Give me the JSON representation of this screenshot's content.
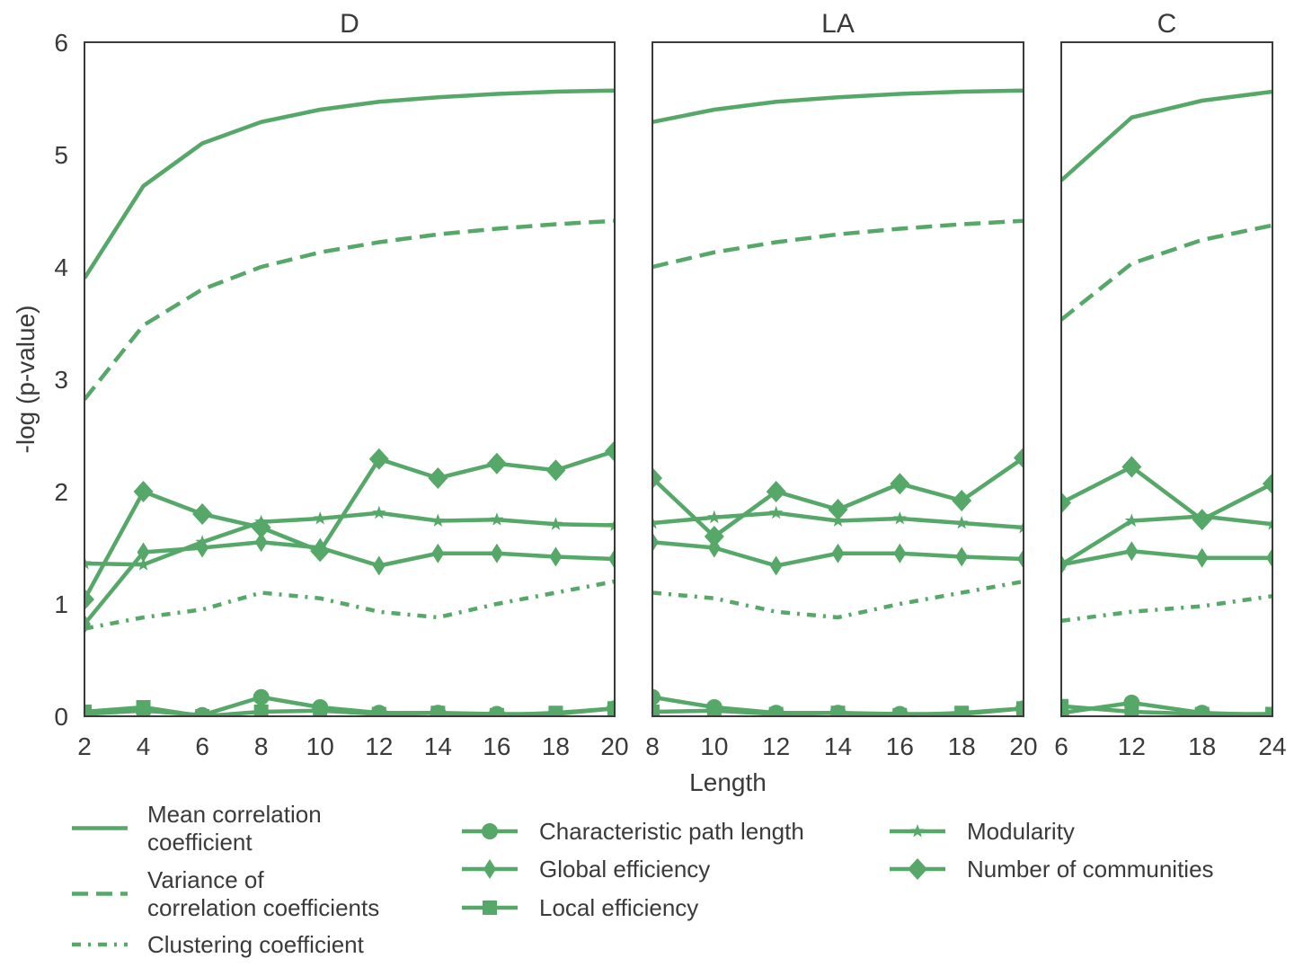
{
  "chart_data": {
    "type": "line",
    "color": "#55a868",
    "ylabel": "-log (p-value)",
    "xlabel": "Length",
    "ylim": [
      0,
      6
    ],
    "yticks": [
      0,
      1,
      2,
      3,
      4,
      5,
      6
    ],
    "grid": false,
    "legend_position": "bottom",
    "legend": [
      {
        "name": "Mean correlation coefficient",
        "lines": [
          "Mean correlation",
          "coefficient"
        ],
        "style": "solid",
        "marker": "none"
      },
      {
        "name": "Variance of correlation coefficients",
        "lines": [
          "Variance of",
          "correlation coefficients"
        ],
        "style": "dashed",
        "marker": "none"
      },
      {
        "name": "Clustering coefficient",
        "lines": [
          "Clustering coefficient"
        ],
        "style": "dashdot",
        "marker": "none"
      },
      {
        "name": "Characteristic path length",
        "lines": [
          "Characteristic path length"
        ],
        "style": "solid",
        "marker": "circle"
      },
      {
        "name": "Global efficiency",
        "lines": [
          "Global efficiency"
        ],
        "style": "solid",
        "marker": "thin_diamond"
      },
      {
        "name": "Local efficiency",
        "lines": [
          "Local efficiency"
        ],
        "style": "solid",
        "marker": "square"
      },
      {
        "name": "Modularity",
        "lines": [
          "Modularity"
        ],
        "style": "solid",
        "marker": "star"
      },
      {
        "name": "Number of communities",
        "lines": [
          "Number of communities"
        ],
        "style": "solid",
        "marker": "diamond"
      }
    ],
    "panels": [
      {
        "title": "D",
        "xlim": [
          2,
          20
        ],
        "x": [
          2,
          4,
          6,
          8,
          10,
          12,
          14,
          16,
          18,
          20
        ],
        "xticks": [
          2,
          4,
          6,
          8,
          10,
          12,
          14,
          16,
          18,
          20
        ],
        "series": [
          {
            "name": "Mean correlation coefficient",
            "values": [
              3.9,
              4.72,
              5.1,
              5.29,
              5.4,
              5.47,
              5.51,
              5.54,
              5.56,
              5.57
            ]
          },
          {
            "name": "Variance of correlation coefficients",
            "values": [
              2.82,
              3.48,
              3.8,
              4.0,
              4.13,
              4.22,
              4.29,
              4.34,
              4.38,
              4.41
            ]
          },
          {
            "name": "Clustering coefficient",
            "values": [
              0.78,
              0.88,
              0.95,
              1.1,
              1.05,
              0.93,
              0.88,
              1.0,
              1.1,
              1.2
            ]
          },
          {
            "name": "Characteristic path length",
            "values": [
              0.02,
              0.05,
              0.01,
              0.17,
              0.08,
              0.03,
              0.03,
              0.02,
              0.02,
              0.07
            ]
          },
          {
            "name": "Global efficiency",
            "values": [
              0.82,
              1.46,
              1.5,
              1.55,
              1.5,
              1.34,
              1.45,
              1.45,
              1.42,
              1.4
            ]
          },
          {
            "name": "Local efficiency",
            "values": [
              0.04,
              0.08,
              0.0,
              0.04,
              0.05,
              0.02,
              0.03,
              0.01,
              0.03,
              0.07
            ]
          },
          {
            "name": "Modularity",
            "values": [
              1.36,
              1.35,
              1.55,
              1.73,
              1.76,
              1.81,
              1.74,
              1.75,
              1.71,
              1.7
            ]
          },
          {
            "name": "Number of communities",
            "values": [
              1.04,
              2.0,
              1.8,
              1.68,
              1.47,
              2.29,
              2.12,
              2.25,
              2.19,
              2.36
            ]
          }
        ]
      },
      {
        "title": "LA",
        "xlim": [
          8,
          20
        ],
        "x": [
          8,
          10,
          12,
          14,
          16,
          18,
          20
        ],
        "xticks": [
          8,
          10,
          12,
          14,
          16,
          18,
          20
        ],
        "series": [
          {
            "name": "Mean correlation coefficient",
            "values": [
              5.29,
              5.4,
              5.47,
              5.51,
              5.54,
              5.56,
              5.57
            ]
          },
          {
            "name": "Variance of correlation coefficients",
            "values": [
              4.0,
              4.13,
              4.22,
              4.29,
              4.34,
              4.38,
              4.41
            ]
          },
          {
            "name": "Clustering coefficient",
            "values": [
              1.1,
              1.05,
              0.93,
              0.88,
              1.0,
              1.1,
              1.2
            ]
          },
          {
            "name": "Characteristic path length",
            "values": [
              0.17,
              0.08,
              0.03,
              0.03,
              0.02,
              0.02,
              0.07
            ]
          },
          {
            "name": "Global efficiency",
            "values": [
              1.55,
              1.5,
              1.34,
              1.45,
              1.45,
              1.42,
              1.4
            ]
          },
          {
            "name": "Local efficiency",
            "values": [
              0.04,
              0.05,
              0.02,
              0.03,
              0.01,
              0.03,
              0.07
            ]
          },
          {
            "name": "Modularity",
            "values": [
              1.72,
              1.77,
              1.81,
              1.74,
              1.76,
              1.72,
              1.68
            ]
          },
          {
            "name": "Number of communities",
            "values": [
              2.12,
              1.6,
              2.0,
              1.84,
              2.07,
              1.92,
              2.3
            ]
          }
        ]
      },
      {
        "title": "C",
        "xlim": [
          6,
          24
        ],
        "x": [
          6,
          12,
          18,
          24
        ],
        "xticks": [
          6,
          12,
          18,
          24
        ],
        "series": [
          {
            "name": "Mean correlation coefficient",
            "values": [
              4.77,
              5.33,
              5.48,
              5.56
            ]
          },
          {
            "name": "Variance of correlation coefficients",
            "values": [
              3.53,
              4.03,
              4.24,
              4.37
            ]
          },
          {
            "name": "Clustering coefficient",
            "values": [
              0.85,
              0.93,
              0.98,
              1.07
            ]
          },
          {
            "name": "Characteristic path length",
            "values": [
              0.03,
              0.12,
              0.03,
              0.01
            ]
          },
          {
            "name": "Global efficiency",
            "values": [
              1.35,
              1.47,
              1.41,
              1.41
            ]
          },
          {
            "name": "Local efficiency",
            "values": [
              0.09,
              0.04,
              0.02,
              0.02
            ]
          },
          {
            "name": "Modularity",
            "values": [
              1.35,
              1.74,
              1.78,
              1.71
            ]
          },
          {
            "name": "Number of communities",
            "values": [
              1.9,
              2.22,
              1.75,
              2.07
            ]
          }
        ]
      }
    ]
  }
}
